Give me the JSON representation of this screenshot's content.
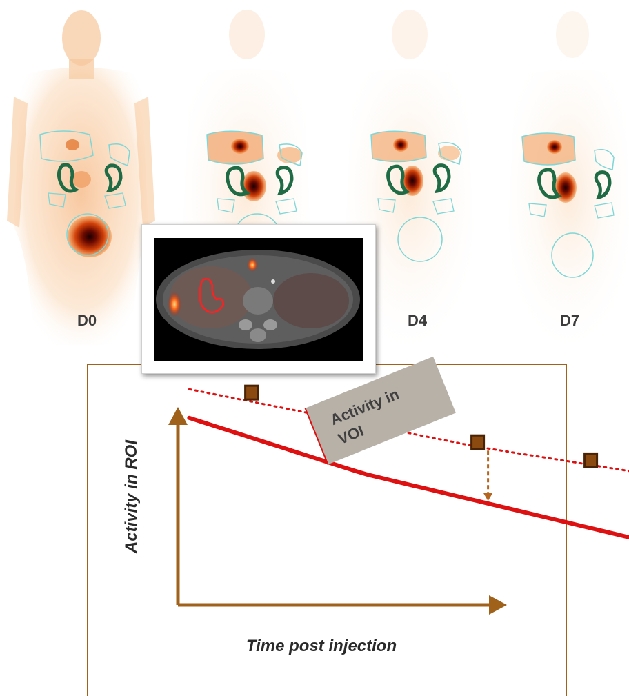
{
  "figure": {
    "scans": [
      {
        "id": "d0",
        "label": "D0"
      },
      {
        "id": "d2",
        "label": ""
      },
      {
        "id": "d4",
        "label": "D4"
      },
      {
        "id": "d7",
        "label": "D7"
      }
    ],
    "graph": {
      "y_axis_label": "Activity in ROI",
      "x_axis_label": "Time post injection",
      "callout": {
        "line1": "Activity in",
        "line2": "VOI"
      }
    }
  },
  "colors": {
    "axis": "#a0621b",
    "curve": "#dd1111",
    "marker_fill": "#8a4a10",
    "roi_organ": "#1f6b46",
    "roi_outline": "#7fd6d6",
    "callout_bg": "#b8b1a8"
  },
  "chart_data": {
    "type": "line",
    "x": [
      1,
      2,
      3,
      4
    ],
    "series": [
      {
        "values": [
          5.8,
          5.3,
          4.8,
          4.4
        ]
      },
      {
        "values": [
          5.0,
          4.2,
          3.6,
          3.0
        ]
      }
    ],
    "markers": [
      {
        "x": 1,
        "y": 6.0
      },
      {
        "x": 2,
        "y": 5.3
      },
      {
        "x": 3,
        "y": 4.9
      },
      {
        "x": 4,
        "y": 4.5
      }
    ],
    "voi_point": {
      "x": 1.8,
      "y": 4.9
    },
    "grid": false
  }
}
